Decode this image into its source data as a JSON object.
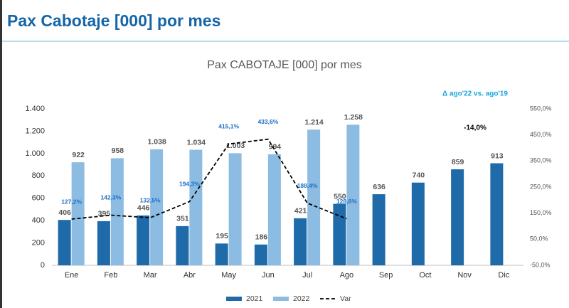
{
  "header": {
    "title": "Pax Cabotaje [000] por mes"
  },
  "chart_data": {
    "type": "bar",
    "title": "Pax CABOTAJE [000] por mes",
    "categories": [
      "Ene",
      "Feb",
      "Mar",
      "Abr",
      "May",
      "Jun",
      "Jul",
      "Ago",
      "Sep",
      "Oct",
      "Nov",
      "Dic"
    ],
    "series": [
      {
        "name": "2021",
        "color": "#1f6aa8",
        "values": [
          406,
          395,
          446,
          351,
          195,
          186,
          421,
          550,
          636,
          740,
          859,
          913
        ]
      },
      {
        "name": "2022",
        "color": "#8dbce3",
        "values": [
          922,
          958,
          1038,
          1034,
          1003,
          994,
          1214,
          1258,
          null,
          null,
          null,
          null
        ],
        "value_labels": [
          "922",
          "958",
          "1.038",
          "1.034",
          "1.003",
          "994",
          "1.214",
          "1.258",
          null,
          null,
          null,
          null
        ]
      },
      {
        "name": "Var",
        "type": "line",
        "axis": "y2",
        "color": "#000000",
        "dashed": true,
        "values": [
          127.2,
          142.3,
          132.5,
          194.3,
          415.1,
          433.6,
          188.4,
          128.6,
          null,
          null,
          null,
          null
        ],
        "value_labels": [
          "127,2%",
          "142,3%",
          "132,5%",
          "194,3%",
          "415,1%",
          "433,6%",
          "188,4%",
          "128,6%",
          null,
          null,
          null,
          null
        ]
      }
    ],
    "ylim": [
      0,
      1400
    ],
    "yticks": [
      0,
      200,
      400,
      600,
      800,
      {
        "value": 1000,
        "label": "1.000"
      },
      {
        "value": 1200,
        "label": "1.200"
      },
      {
        "value": 1400,
        "label": "1.400"
      }
    ],
    "y2lim": [
      -50,
      550
    ],
    "y2ticks": [
      {
        "value": -50,
        "label": "-50,0%"
      },
      {
        "value": 50,
        "label": "50,0%"
      },
      {
        "value": 150,
        "label": "150,0%"
      },
      {
        "value": 250,
        "label": "250,0%"
      },
      {
        "value": 350,
        "label": "350,0%"
      },
      {
        "value": 450,
        "label": "450,0%"
      },
      {
        "value": 550,
        "label": "550,0%"
      }
    ],
    "annotations": [
      "Δ ago'22 vs. ago'19",
      "-14,0%"
    ],
    "legend": "bottom",
    "grid": false
  }
}
